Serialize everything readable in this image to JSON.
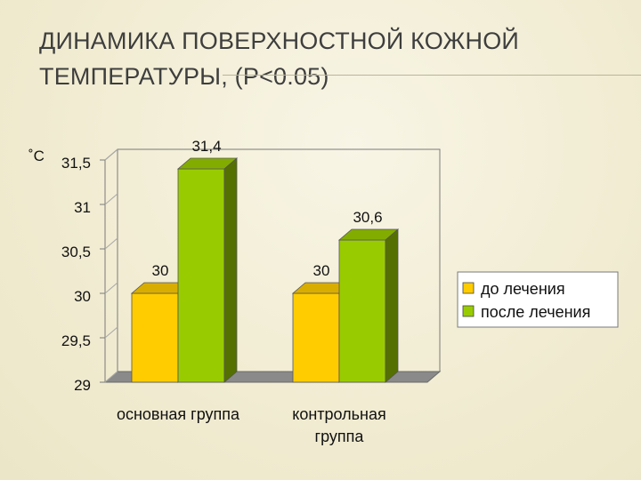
{
  "slide": {
    "title_line1": "ДИНАМИКА ПОВЕРХНОСТНОЙ КОЖНОЙ",
    "title_line2": "ТЕМПЕРАТУРЫ, (Р<0.05)"
  },
  "colors": {
    "before": "#ffcc00",
    "after": "#99cc00"
  },
  "chart_data": {
    "type": "bar",
    "ylabel": "˚С",
    "ylim": [
      29,
      31.5
    ],
    "ytick_values": [
      29,
      29.5,
      30,
      30.5,
      31,
      31.5
    ],
    "ytick_labels": [
      "29",
      "29,5",
      "30",
      "30,5",
      "31",
      "31,5"
    ],
    "categories": [
      "основная группа",
      "контрольная группа"
    ],
    "category_lines": [
      [
        "основная группа"
      ],
      [
        "контрольная",
        "группа"
      ]
    ],
    "series": [
      {
        "name": "до лечения",
        "values": [
          30,
          30
        ],
        "labels": [
          "30",
          "30"
        ]
      },
      {
        "name": "после лечения",
        "values": [
          31.4,
          30.6
        ],
        "labels": [
          "31,4",
          "30,6"
        ]
      }
    ],
    "legend_position": "right",
    "grid": false,
    "style": "3d-column"
  }
}
